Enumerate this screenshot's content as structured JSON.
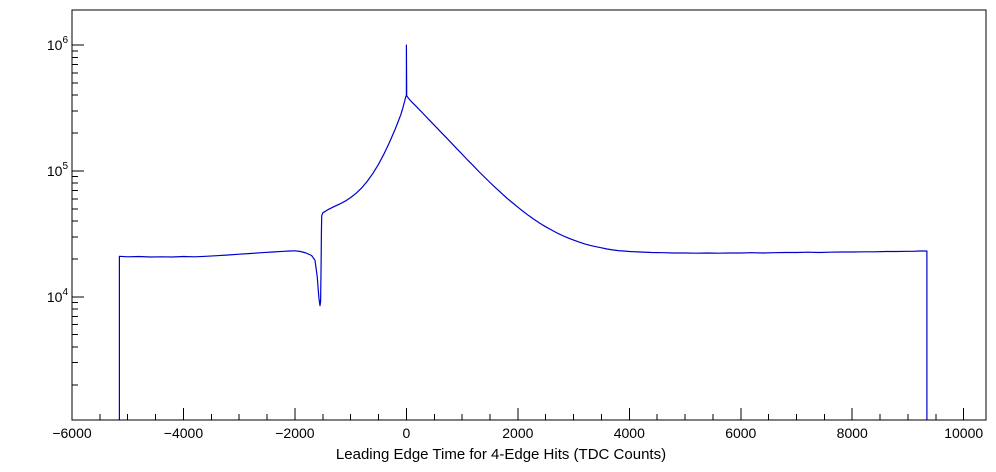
{
  "figure": {
    "background": "#ffffff",
    "frame_color": "#000000",
    "text_color": "#000000"
  },
  "chart_data": {
    "type": "line",
    "title": "",
    "xlabel": "Leading Edge Time for 4-Edge Hits (TDC Counts)",
    "ylabel": "",
    "x_scale": "linear",
    "y_scale": "log",
    "xlim": [
      -6000,
      10400
    ],
    "ylim": [
      1050,
      1900000
    ],
    "grid": false,
    "legend": false,
    "line_color": "#0000cc",
    "x_ticks": {
      "major_step": 2000,
      "minor_step": 500,
      "values": [
        -6000,
        -4000,
        -2000,
        0,
        2000,
        4000,
        6000,
        8000,
        10000
      ],
      "labels": [
        "−6000",
        "−4000",
        "−2000",
        "0",
        "2000",
        "4000",
        "6000",
        "8000",
        "10000"
      ]
    },
    "y_ticks": {
      "major": [
        {
          "value": 10000,
          "base": "10",
          "exp": "4"
        },
        {
          "value": 100000,
          "base": "10",
          "exp": "5"
        },
        {
          "value": 1000000,
          "base": "10",
          "exp": "6"
        }
      ]
    },
    "features": {
      "left_edge_x": -5150,
      "right_edge_x": 9340,
      "left_plateau_counts": 21000,
      "right_plateau_counts": 22800,
      "dip_x": -1550,
      "dip_counts": 8500,
      "step_up_x": -1520,
      "step_up_counts": 44000,
      "peak_x": 0,
      "peak_counts": 400000,
      "spike_counts": 1000000
    },
    "series": [
      {
        "name": "leading_edge_time_4edge_hits",
        "points": [
          [
            -5150,
            1050
          ],
          [
            -5150,
            21000
          ],
          [
            -5000,
            20800
          ],
          [
            -4800,
            20900
          ],
          [
            -4600,
            20700
          ],
          [
            -4400,
            20800
          ],
          [
            -4200,
            20700
          ],
          [
            -4000,
            20900
          ],
          [
            -3800,
            20800
          ],
          [
            -3600,
            21000
          ],
          [
            -3400,
            21200
          ],
          [
            -3200,
            21500
          ],
          [
            -3000,
            21800
          ],
          [
            -2800,
            22100
          ],
          [
            -2600,
            22400
          ],
          [
            -2400,
            22700
          ],
          [
            -2200,
            23000
          ],
          [
            -2100,
            23100
          ],
          [
            -2000,
            23200
          ],
          [
            -1900,
            22900
          ],
          [
            -1800,
            22300
          ],
          [
            -1700,
            21300
          ],
          [
            -1640,
            19500
          ],
          [
            -1600,
            14500
          ],
          [
            -1570,
            9800
          ],
          [
            -1550,
            8500
          ],
          [
            -1540,
            9200
          ],
          [
            -1530,
            18000
          ],
          [
            -1525,
            32000
          ],
          [
            -1520,
            44000
          ],
          [
            -1500,
            46500
          ],
          [
            -1450,
            48000
          ],
          [
            -1400,
            49500
          ],
          [
            -1300,
            52000
          ],
          [
            -1200,
            54500
          ],
          [
            -1100,
            57500
          ],
          [
            -1000,
            61500
          ],
          [
            -900,
            66500
          ],
          [
            -800,
            73500
          ],
          [
            -700,
            83000
          ],
          [
            -600,
            96000
          ],
          [
            -500,
            113000
          ],
          [
            -400,
            137000
          ],
          [
            -300,
            170000
          ],
          [
            -200,
            215000
          ],
          [
            -150,
            245000
          ],
          [
            -100,
            280000
          ],
          [
            -60,
            320000
          ],
          [
            -30,
            360000
          ],
          [
            -10,
            390000
          ],
          [
            0,
            400000
          ],
          [
            0,
            1000000
          ],
          [
            5,
            395000
          ],
          [
            50,
            372000
          ],
          [
            100,
            352000
          ],
          [
            200,
            318000
          ],
          [
            300,
            286000
          ],
          [
            400,
            257000
          ],
          [
            500,
            231000
          ],
          [
            600,
            208000
          ],
          [
            700,
            187000
          ],
          [
            800,
            168000
          ],
          [
            900,
            151000
          ],
          [
            1000,
            136000
          ],
          [
            1100,
            122000
          ],
          [
            1200,
            110000
          ],
          [
            1300,
            99000
          ],
          [
            1400,
            89500
          ],
          [
            1500,
            81000
          ],
          [
            1600,
            73500
          ],
          [
            1700,
            67000
          ],
          [
            1800,
            61000
          ],
          [
            1900,
            56000
          ],
          [
            2000,
            51500
          ],
          [
            2100,
            47500
          ],
          [
            2200,
            44000
          ],
          [
            2300,
            41000
          ],
          [
            2400,
            38300
          ],
          [
            2500,
            36000
          ],
          [
            2600,
            34000
          ],
          [
            2700,
            32200
          ],
          [
            2800,
            30700
          ],
          [
            2900,
            29400
          ],
          [
            3000,
            28200
          ],
          [
            3100,
            27200
          ],
          [
            3200,
            26300
          ],
          [
            3300,
            25600
          ],
          [
            3400,
            25000
          ],
          [
            3500,
            24500
          ],
          [
            3600,
            24000
          ],
          [
            3700,
            23600
          ],
          [
            3800,
            23300
          ],
          [
            3900,
            23100
          ],
          [
            4000,
            22900
          ],
          [
            4200,
            22700
          ],
          [
            4400,
            22500
          ],
          [
            4600,
            22400
          ],
          [
            4800,
            22300
          ],
          [
            5000,
            22300
          ],
          [
            5200,
            22200
          ],
          [
            5400,
            22300
          ],
          [
            5600,
            22200
          ],
          [
            5800,
            22300
          ],
          [
            6000,
            22300
          ],
          [
            6200,
            22400
          ],
          [
            6400,
            22300
          ],
          [
            6600,
            22400
          ],
          [
            6800,
            22500
          ],
          [
            7000,
            22500
          ],
          [
            7200,
            22600
          ],
          [
            7400,
            22500
          ],
          [
            7600,
            22600
          ],
          [
            7800,
            22700
          ],
          [
            8000,
            22700
          ],
          [
            8200,
            22800
          ],
          [
            8400,
            22800
          ],
          [
            8600,
            22900
          ],
          [
            8800,
            22900
          ],
          [
            9000,
            23000
          ],
          [
            9100,
            23000
          ],
          [
            9200,
            23100
          ],
          [
            9340,
            23100
          ],
          [
            9340,
            1050
          ]
        ]
      }
    ]
  }
}
